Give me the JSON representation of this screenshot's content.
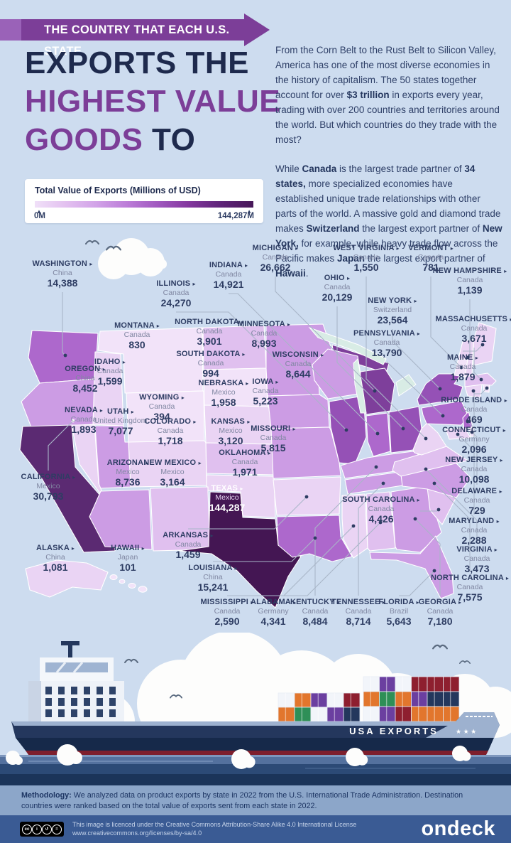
{
  "banner": {
    "text": "THE COUNTRY THAT EACH U.S. STATE"
  },
  "title": {
    "line1": "EXPORTS THE",
    "line2": "HIGHEST VALUE",
    "line3_a": "GOODS",
    "line3_b": " TO"
  },
  "intro": {
    "p1": [
      [
        "From the Corn Belt to the Rust Belt to Silicon Valley, America has one of the most diverse economies in the history of capitalism. The 50 states together account for over ",
        0
      ],
      [
        "$3 trillion",
        1
      ],
      [
        " in exports every year, trading with over 200 countries and territories around the world. But which countries do they trade with the most?",
        0
      ]
    ],
    "p2": [
      [
        "While ",
        0
      ],
      [
        "Canada",
        1
      ],
      [
        " is the largest trade partner of ",
        0
      ],
      [
        "34 states,",
        1
      ],
      [
        " more specialized economies have established unique trade relationships with other parts of the world. A massive gold and diamond trade makes ",
        0
      ],
      [
        "Switzerland",
        1
      ],
      [
        " the largest export partner of ",
        0
      ],
      [
        "New York,",
        1
      ],
      [
        " for example, while heavy trade flow across the Pacific makes ",
        0
      ],
      [
        "Japan",
        1
      ],
      [
        " the largest export partner of ",
        0
      ],
      [
        "Hawaii",
        1
      ],
      [
        ".",
        0
      ]
    ]
  },
  "legend": {
    "title": "Total Value of Exports (Millions of USD)",
    "min": "0M",
    "max": "144,287M"
  },
  "chart_data": {
    "type": "choropleth",
    "title": "The Country That Each U.S. State Exports the Highest Value Goods To",
    "unit": "Millions of USD",
    "value_range": [
      0,
      144287
    ],
    "states": [
      {
        "id": "WA",
        "name": "WASHINGTON",
        "country": "China",
        "value": "14,388"
      },
      {
        "id": "OR",
        "name": "OREGON",
        "country": "China",
        "value": "8,452"
      },
      {
        "id": "CA",
        "name": "CALIFORNIA",
        "country": "Mexico",
        "value": "30,793"
      },
      {
        "id": "NV",
        "name": "NEVADA",
        "country": "Canada",
        "value": "1,893"
      },
      {
        "id": "ID",
        "name": "IDAHO",
        "country": "Canada",
        "value": "1,599"
      },
      {
        "id": "MT",
        "name": "MONTANA",
        "country": "Canada",
        "value": "830"
      },
      {
        "id": "WY",
        "name": "WYOMING",
        "country": "Canada",
        "value": "394"
      },
      {
        "id": "UT",
        "name": "UTAH",
        "country": "United Kingdom",
        "value": "7,077"
      },
      {
        "id": "CO",
        "name": "COLORADO",
        "country": "Canada",
        "value": "1,718"
      },
      {
        "id": "AZ",
        "name": "ARIZONA",
        "country": "Mexico",
        "value": "8,736"
      },
      {
        "id": "NM",
        "name": "NEW MEXICO",
        "country": "Mexico",
        "value": "3,164"
      },
      {
        "id": "ND",
        "name": "NORTH DAKOTA",
        "country": "Canada",
        "value": "3,901"
      },
      {
        "id": "SD",
        "name": "SOUTH DAKOTA",
        "country": "Canada",
        "value": "994"
      },
      {
        "id": "NE",
        "name": "NEBRASKA",
        "country": "Mexico",
        "value": "1,958"
      },
      {
        "id": "KS",
        "name": "KANSAS",
        "country": "Mexico",
        "value": "3,120"
      },
      {
        "id": "OK",
        "name": "OKLAHOMA",
        "country": "Canada",
        "value": "1,971"
      },
      {
        "id": "TX",
        "name": "TEXAS",
        "country": "Mexico",
        "value": "144,287"
      },
      {
        "id": "MN",
        "name": "MINNESOTA",
        "country": "Canada",
        "value": "8,993"
      },
      {
        "id": "IA",
        "name": "IOWA",
        "country": "Canada",
        "value": "5,223"
      },
      {
        "id": "MO",
        "name": "MISSOURI",
        "country": "Canada",
        "value": "5,815"
      },
      {
        "id": "AR",
        "name": "ARKANSAS",
        "country": "Canada",
        "value": "1,459"
      },
      {
        "id": "LA",
        "name": "LOUISIANA",
        "country": "China",
        "value": "15,241"
      },
      {
        "id": "WI",
        "name": "WISCONSIN",
        "country": "Canada",
        "value": "8,644"
      },
      {
        "id": "IL",
        "name": "ILLINOIS",
        "country": "Canada",
        "value": "24,270"
      },
      {
        "id": "MI",
        "name": "MICHIGAN",
        "country": "Canada",
        "value": "26,662"
      },
      {
        "id": "IN",
        "name": "INDIANA",
        "country": "Canada",
        "value": "14,921"
      },
      {
        "id": "OH",
        "name": "OHIO",
        "country": "Canada",
        "value": "20,129"
      },
      {
        "id": "KY",
        "name": "KENTUCKY",
        "country": "Canada",
        "value": "8,484"
      },
      {
        "id": "TN",
        "name": "TENNESSEE",
        "country": "Canada",
        "value": "8,714"
      },
      {
        "id": "MS",
        "name": "MISSISSIPPI",
        "country": "Canada",
        "value": "2,590"
      },
      {
        "id": "AL",
        "name": "ALABAMA",
        "country": "Germany",
        "value": "4,341"
      },
      {
        "id": "GA",
        "name": "GEORGIA",
        "country": "Canada",
        "value": "7,180"
      },
      {
        "id": "FL",
        "name": "FLORIDA",
        "country": "Brazil",
        "value": "5,643"
      },
      {
        "id": "SC",
        "name": "SOUTH CAROLINA",
        "country": "Canada",
        "value": "4,426"
      },
      {
        "id": "NC",
        "name": "NORTH CAROLINA",
        "country": "Canada",
        "value": "7,575"
      },
      {
        "id": "VA",
        "name": "VIRGINIA",
        "country": "Canada",
        "value": "3,473"
      },
      {
        "id": "WV",
        "name": "WEST VIRGINIA",
        "country": "Canada",
        "value": "1,550"
      },
      {
        "id": "MD",
        "name": "MARYLAND",
        "country": "Canada",
        "value": "2,288"
      },
      {
        "id": "DE",
        "name": "DELAWARE",
        "country": "Canada",
        "value": "729"
      },
      {
        "id": "NJ",
        "name": "NEW JERSEY",
        "country": "Canada",
        "value": "10,098"
      },
      {
        "id": "PA",
        "name": "PENNSYLVANIA",
        "country": "Canada",
        "value": "13,790"
      },
      {
        "id": "NY",
        "name": "NEW YORK",
        "country": "Switzerland",
        "value": "23,564"
      },
      {
        "id": "CT",
        "name": "CONNECTICUT",
        "country": "Germany",
        "value": "2,096"
      },
      {
        "id": "RI",
        "name": "RHODE ISLAND",
        "country": "Canada",
        "value": "469"
      },
      {
        "id": "MA",
        "name": "MASSACHUSETTS",
        "country": "Canada",
        "value": "3,671"
      },
      {
        "id": "VT",
        "name": "VERMONT",
        "country": "Canada",
        "value": "781"
      },
      {
        "id": "NH",
        "name": "NEW HAMPSHIRE",
        "country": "Canada",
        "value": "1,139"
      },
      {
        "id": "ME",
        "name": "MAINE",
        "country": "Canada",
        "value": "1,879"
      },
      {
        "id": "AK",
        "name": "ALASKA",
        "country": "China",
        "value": "1,081"
      },
      {
        "id": "HI",
        "name": "HAWAII",
        "country": "Japan",
        "value": "101"
      }
    ]
  },
  "ship": {
    "hull_text": "USA EXPORTS",
    "stars": "★ ★ ★"
  },
  "footer": {
    "methodology": [
      [
        "Methodology:",
        1
      ],
      [
        " We analyzed data on product exports by state in 2022 from the U.S. International Trade Administration. Destination countries were ranked based on the total value of exports sent from each state in 2022.",
        0
      ]
    ],
    "license_line1": "This image is licenced under the Creative Commons Attribution-Share Alike 4.0 International License",
    "license_line2": "www.creativecommons.org/licenses/by-sa/4.0",
    "logo": "ondeck"
  },
  "colors": {
    "page_bg": "#cddcef",
    "banner_purple": "#7c3e98",
    "banner_light": "#9a62b8",
    "title_navy": "#1e2a4d",
    "title_purple": "#7c3e98",
    "label_navy": "#2e3d63",
    "label_country": "#8087a2",
    "leader": "#a9b6c8",
    "lake": "#d8ece5",
    "choropleth": [
      [
        1000,
        "#f2e3f9"
      ],
      [
        2600,
        "#ead4f4"
      ],
      [
        5000,
        "#e0c0ef"
      ],
      [
        10000,
        "#cc9ce4"
      ],
      [
        16000,
        "#ad68cc"
      ],
      [
        25000,
        "#9551b6"
      ],
      [
        28000,
        "#7e3f9b"
      ],
      [
        40000,
        "#5b2a72"
      ],
      [
        999999,
        "#441653"
      ]
    ],
    "water": [
      "#54719e",
      "#2c4a76",
      "#1b3459"
    ],
    "hull": [
      "#9db1cf",
      "#24375d",
      "#7e1f2d",
      "#e2762d"
    ],
    "method_band": "#8ca6c9",
    "footer_bar": "#3a5b94"
  }
}
